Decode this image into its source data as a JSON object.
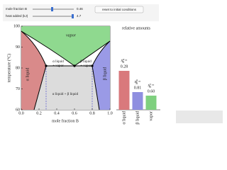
{
  "controls": {
    "sliders": [
      {
        "label": "mole fraction B",
        "value": "0.46"
      },
      {
        "label": "heat added (kJ)",
        "value": "4.7"
      }
    ],
    "reset_button": "reset to initial conditions"
  },
  "phase_diagram": {
    "x_label": "mole fraction B",
    "y_label": "temperature (°C)",
    "xlim": [
      0,
      1
    ],
    "ylim": [
      60,
      100
    ],
    "xticks": [
      {
        "value": 0,
        "label": "0.0"
      },
      0.2,
      0.4,
      0.6,
      0.8,
      {
        "value": 1,
        "label": "1.0"
      }
    ],
    "yticks": [
      60,
      70,
      80,
      90,
      100
    ],
    "regions": {
      "vapor": [
        "vapor"
      ],
      "alpha": [
        "α liquid"
      ],
      "beta": [
        "β liquid"
      ],
      "alpha_vapor": [
        "α liquid",
        "+ vapor"
      ],
      "beta_vapor": [
        "β liquid",
        "+ vapor"
      ],
      "alpha_beta": [
        "α liquid + β liquid"
      ]
    }
  },
  "relative_amounts": {
    "title": "relative amounts",
    "ylim": [
      0,
      1
    ],
    "bars": [
      {
        "name": "α liquid",
        "color": "#d9797c",
        "value": 0.55,
        "symbol": "x",
        "sub": "B",
        "sup": "α",
        "eq": "=",
        "composition": "0.28"
      },
      {
        "name": "β liquid",
        "color": "#8f8fe0",
        "value": 0.25,
        "symbol": "x",
        "sub": "B",
        "sup": "β",
        "eq": "=",
        "composition": "0.81"
      },
      {
        "name": "vapor",
        "color": "#7fd07f",
        "value": 0.2,
        "symbol": "x",
        "sub": "B",
        "sup": "v",
        "eq": "=",
        "composition": "0.60"
      }
    ]
  }
}
